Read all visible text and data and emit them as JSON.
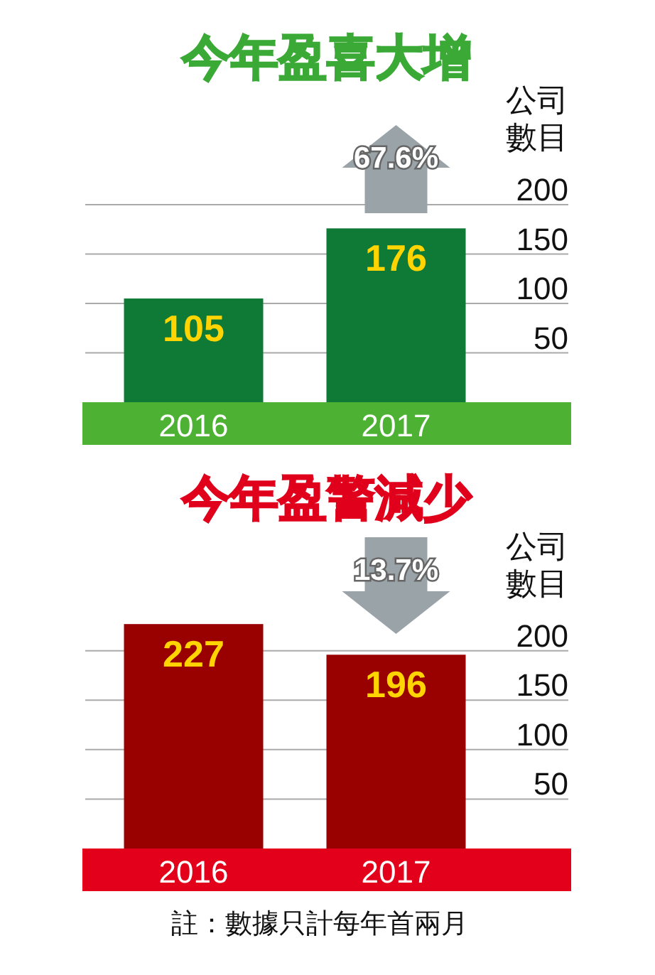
{
  "chart_data": [
    {
      "type": "bar",
      "title": "今年盈喜大增",
      "ylabel": "公司數目",
      "categories": [
        "2016",
        "2017"
      ],
      "values": [
        105,
        176
      ],
      "color": "#0f7a35",
      "ylim": [
        0,
        200
      ],
      "yticks": [
        50,
        100,
        150,
        200
      ],
      "grid": "y",
      "data_labels": true,
      "annotations": [
        "67.6%"
      ]
    },
    {
      "type": "bar",
      "title": "今年盈警減少",
      "ylabel": "公司數目",
      "categories": [
        "2016",
        "2017"
      ],
      "values": [
        227,
        196
      ],
      "color": "#990000",
      "ylim": [
        0,
        230
      ],
      "yticks": [
        50,
        100,
        150,
        200
      ],
      "grid": "y",
      "data_labels": true,
      "annotations": [
        "13.7%",
        "註：數據只計每年首兩月"
      ]
    }
  ]
}
